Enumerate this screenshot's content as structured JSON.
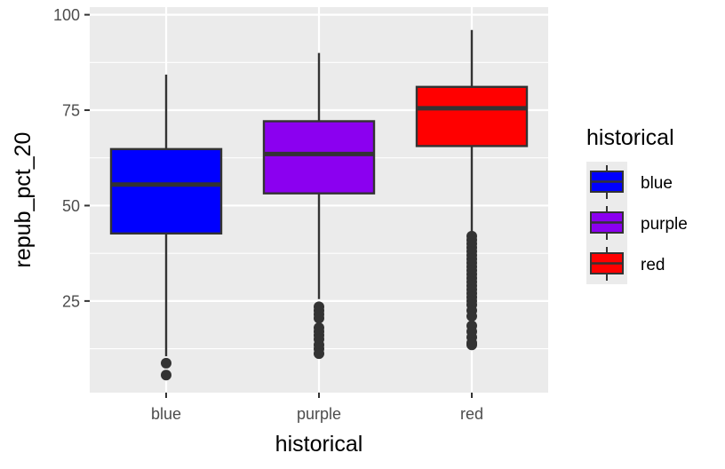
{
  "chart_data": {
    "type": "boxplot",
    "xlabel": "historical",
    "ylabel": "repub_pct_20",
    "categories": [
      "blue",
      "purple",
      "red"
    ],
    "y_ticks": [
      25,
      50,
      75,
      100
    ],
    "ylim": [
      1,
      102
    ],
    "grid": true,
    "legend": {
      "title": "historical",
      "position": "right",
      "items": [
        "blue",
        "purple",
        "red"
      ]
    },
    "colors": {
      "blue": "#0000FF",
      "purple": "#8B00F0",
      "red": "#FF0000",
      "panel": "#EBEBEB",
      "outline": "#333333"
    },
    "boxes": [
      {
        "name": "blue",
        "whisker_low": 10.5,
        "q1": 42.7,
        "median": 55.5,
        "q3": 64.8,
        "whisker_high": 84.3,
        "outliers": [
          8.7,
          5.6
        ]
      },
      {
        "name": "purple",
        "whisker_low": 25.5,
        "q1": 53.2,
        "median": 63.5,
        "q3": 72.1,
        "whisker_high": 90.0,
        "outliers": [
          23.5,
          22.5,
          21.5,
          20.5,
          18.0,
          17.0,
          16.0,
          15.0,
          13.5,
          12.5,
          11.2
        ]
      },
      {
        "name": "red",
        "whisker_low": 42.5,
        "q1": 65.6,
        "median": 75.5,
        "q3": 81.1,
        "whisker_high": 96.0,
        "outliers": [
          42.0,
          41.0,
          40.0,
          39.0,
          38.0,
          37.0,
          36.0,
          35.0,
          34.0,
          33.0,
          32.0,
          31.0,
          30.0,
          29.0,
          28.0,
          27.0,
          26.0,
          25.0,
          24.0,
          22.5,
          21.0,
          18.5,
          17.0,
          15.5,
          14.0,
          13.5
        ]
      }
    ]
  }
}
